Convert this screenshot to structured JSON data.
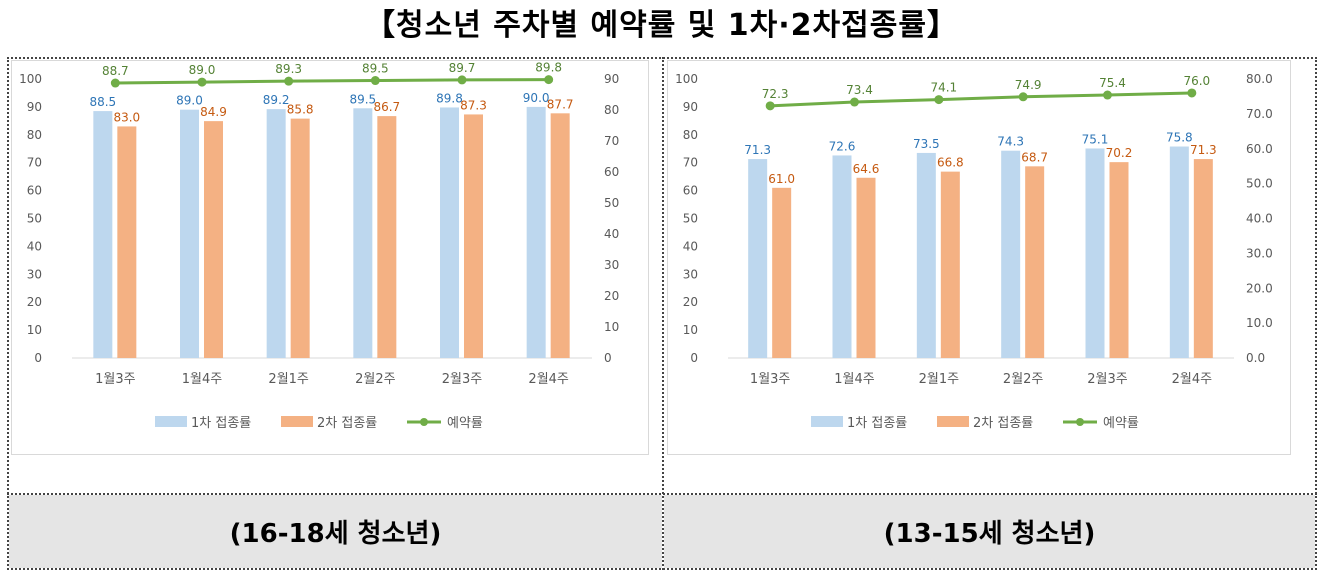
{
  "page_title": "【청소년 주차별 예약률 및 1차·2차접종률】",
  "chart_data": [
    {
      "type": "bar",
      "caption": "(16-18세 청소년)",
      "categories": [
        "1월3주",
        "1월4주",
        "2월1주",
        "2월2주",
        "2월3주",
        "2월4주"
      ],
      "series": [
        {
          "name": "1차 접종률",
          "type": "bar",
          "axis": "left",
          "color": "#bdd7ee",
          "label_color": "#2e75b6",
          "values": [
            88.5,
            89.0,
            89.2,
            89.5,
            89.8,
            90.0
          ],
          "labels": [
            "88.5",
            "89.0",
            "89.2",
            "89.5",
            "89.8",
            "90.0"
          ]
        },
        {
          "name": "2차 접종률",
          "type": "bar",
          "axis": "left",
          "color": "#f4b183",
          "label_color": "#c55a11",
          "values": [
            83.0,
            84.9,
            85.8,
            86.7,
            87.3,
            87.7
          ],
          "labels": [
            "83.0",
            "84.9",
            "85.8",
            "86.7",
            "87.3",
            "87.7"
          ]
        },
        {
          "name": "예약률",
          "type": "line",
          "axis": "right",
          "color": "#70ad47",
          "label_color": "#548235",
          "values": [
            88.7,
            89.0,
            89.3,
            89.5,
            89.7,
            89.8
          ],
          "labels": [
            "88.7",
            "89.0",
            "89.3",
            "89.5",
            "89.7",
            "89.8"
          ]
        }
      ],
      "left_axis": {
        "ylim": [
          0,
          100
        ],
        "ticks": [
          "0",
          "10",
          "20",
          "30",
          "40",
          "50",
          "60",
          "70",
          "80",
          "90",
          "100"
        ]
      },
      "right_axis": {
        "ylim": [
          0,
          90
        ],
        "ticks": [
          "0",
          "10",
          "20",
          "30",
          "40",
          "50",
          "60",
          "70",
          "80",
          "90"
        ]
      },
      "grid": false,
      "legend_position": "bottom"
    },
    {
      "type": "bar",
      "caption": "(13-15세 청소년)",
      "categories": [
        "1월3주",
        "1월4주",
        "2월1주",
        "2월2주",
        "2월3주",
        "2월4주"
      ],
      "series": [
        {
          "name": "1차 접종률",
          "type": "bar",
          "axis": "left",
          "color": "#bdd7ee",
          "label_color": "#2e75b6",
          "values": [
            71.3,
            72.6,
            73.5,
            74.3,
            75.1,
            75.8
          ],
          "labels": [
            "71.3",
            "72.6",
            "73.5",
            "74.3",
            "75.1",
            "75.8"
          ]
        },
        {
          "name": "2차 접종률",
          "type": "bar",
          "axis": "left",
          "color": "#f4b183",
          "label_color": "#c55a11",
          "values": [
            61.0,
            64.6,
            66.8,
            68.7,
            70.2,
            71.3
          ],
          "labels": [
            "61.0",
            "64.6",
            "66.8",
            "68.7",
            "70.2",
            "71.3"
          ]
        },
        {
          "name": "예약률",
          "type": "line",
          "axis": "right",
          "color": "#70ad47",
          "label_color": "#548235",
          "values": [
            72.3,
            73.4,
            74.1,
            74.9,
            75.4,
            76.0
          ],
          "labels": [
            "72.3",
            "73.4",
            "74.1",
            "74.9",
            "75.4",
            "76.0"
          ]
        }
      ],
      "left_axis": {
        "ylim": [
          0,
          100
        ],
        "ticks": [
          "0",
          "10",
          "20",
          "30",
          "40",
          "50",
          "60",
          "70",
          "80",
          "90",
          "100"
        ]
      },
      "right_axis": {
        "ylim": [
          0,
          80
        ],
        "ticks": [
          "0.0",
          "10.0",
          "20.0",
          "30.0",
          "40.0",
          "50.0",
          "60.0",
          "70.0",
          "80.0"
        ]
      },
      "grid": false,
      "legend_position": "bottom"
    }
  ]
}
